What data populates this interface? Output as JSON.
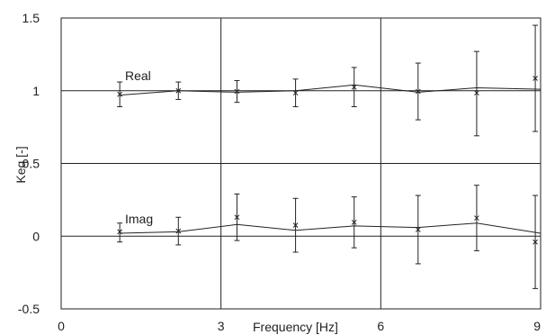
{
  "chart_data": {
    "type": "line",
    "xlabel": "Frequency [Hz]",
    "ylabel": "Keq [-]",
    "xlim": [
      0,
      9
    ],
    "ylim": [
      -0.5,
      1.5
    ],
    "xticks": [
      0,
      3,
      6,
      9
    ],
    "yticks": [
      -0.5,
      0,
      0.5,
      1,
      1.5
    ],
    "xtick_labels": [
      "0",
      "3",
      "6",
      "9"
    ],
    "ytick_labels": [
      "-0.5",
      "0",
      "0.5",
      "1",
      "1.5"
    ],
    "grid": true,
    "annotations": [
      "Real",
      "Imag"
    ],
    "series": [
      {
        "name": "Real",
        "line_x": [
          1.1,
          2.2,
          3.3,
          4.4,
          5.5,
          6.7,
          7.8,
          9.0
        ],
        "line_y": [
          0.97,
          1.0,
          0.99,
          1.0,
          1.04,
          0.99,
          1.02,
          1.01
        ],
        "points": [
          {
            "x": 1.1,
            "y": 0.975,
            "err_low": 0.89,
            "err_high": 1.06
          },
          {
            "x": 2.2,
            "y": 1.0,
            "err_low": 0.94,
            "err_high": 1.06
          },
          {
            "x": 3.3,
            "y": 0.995,
            "err_low": 0.92,
            "err_high": 1.07
          },
          {
            "x": 4.4,
            "y": 0.985,
            "err_low": 0.89,
            "err_high": 1.08
          },
          {
            "x": 5.5,
            "y": 1.025,
            "err_low": 0.89,
            "err_high": 1.16
          },
          {
            "x": 6.7,
            "y": 0.995,
            "err_low": 0.8,
            "err_high": 1.19
          },
          {
            "x": 7.8,
            "y": 0.985,
            "err_low": 0.69,
            "err_high": 1.27
          },
          {
            "x": 8.9,
            "y": 1.085,
            "err_low": 0.72,
            "err_high": 1.45
          }
        ]
      },
      {
        "name": "Imag",
        "line_x": [
          1.1,
          2.2,
          3.3,
          4.4,
          5.5,
          6.7,
          7.8,
          9.0
        ],
        "line_y": [
          0.02,
          0.03,
          0.08,
          0.04,
          0.07,
          0.06,
          0.09,
          0.02
        ],
        "points": [
          {
            "x": 1.1,
            "y": 0.03,
            "err_low": -0.04,
            "err_high": 0.09
          },
          {
            "x": 2.2,
            "y": 0.035,
            "err_low": -0.06,
            "err_high": 0.13
          },
          {
            "x": 3.3,
            "y": 0.13,
            "err_low": -0.03,
            "err_high": 0.29
          },
          {
            "x": 4.4,
            "y": 0.075,
            "err_low": -0.11,
            "err_high": 0.26
          },
          {
            "x": 5.5,
            "y": 0.095,
            "err_low": -0.08,
            "err_high": 0.27
          },
          {
            "x": 6.7,
            "y": 0.045,
            "err_low": -0.19,
            "err_high": 0.28
          },
          {
            "x": 7.8,
            "y": 0.125,
            "err_low": -0.1,
            "err_high": 0.35
          },
          {
            "x": 8.9,
            "y": -0.04,
            "err_low": -0.36,
            "err_high": 0.28
          }
        ]
      }
    ],
    "colors": {
      "line": "#222222",
      "grid": "#222222"
    }
  }
}
